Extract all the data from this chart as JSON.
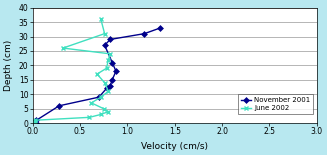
{
  "title": "",
  "xlabel": "Velocity (cm/s)",
  "ylabel": "Depth (cm)",
  "xlim": [
    0.0,
    3.0
  ],
  "ylim": [
    0,
    40
  ],
  "xticks": [
    0.0,
    0.5,
    1.0,
    1.5,
    2.0,
    2.5,
    3.0
  ],
  "yticks": [
    0,
    5,
    10,
    15,
    20,
    25,
    30,
    35,
    40
  ],
  "background_color": "#b8e8f0",
  "plot_bg_color": "#ffffff",
  "nov2001_velocity": [
    0.04,
    0.04,
    0.28,
    0.7,
    0.78,
    0.82,
    0.84,
    0.88,
    0.84,
    0.76,
    0.82,
    1.18,
    1.35
  ],
  "nov2001_depth": [
    0,
    1,
    6,
    9,
    12,
    13,
    15,
    18,
    21,
    27,
    29,
    31,
    33
  ],
  "jun2002_velocity": [
    0.03,
    0.03,
    0.03,
    0.6,
    0.72,
    0.8,
    0.75,
    0.62,
    0.72,
    0.8,
    0.76,
    0.68,
    0.78,
    0.8,
    0.82,
    0.32,
    0.76,
    0.72
  ],
  "jun2002_depth": [
    0,
    0.5,
    1,
    2,
    3,
    4,
    5,
    7,
    9,
    11,
    14,
    17,
    19,
    22,
    24,
    26,
    31,
    36
  ],
  "nov2001_color": "#00008B",
  "jun2002_color": "#40E0C0",
  "legend_labels": [
    "November 2001",
    "June 2002"
  ],
  "grid_color": "#999999"
}
